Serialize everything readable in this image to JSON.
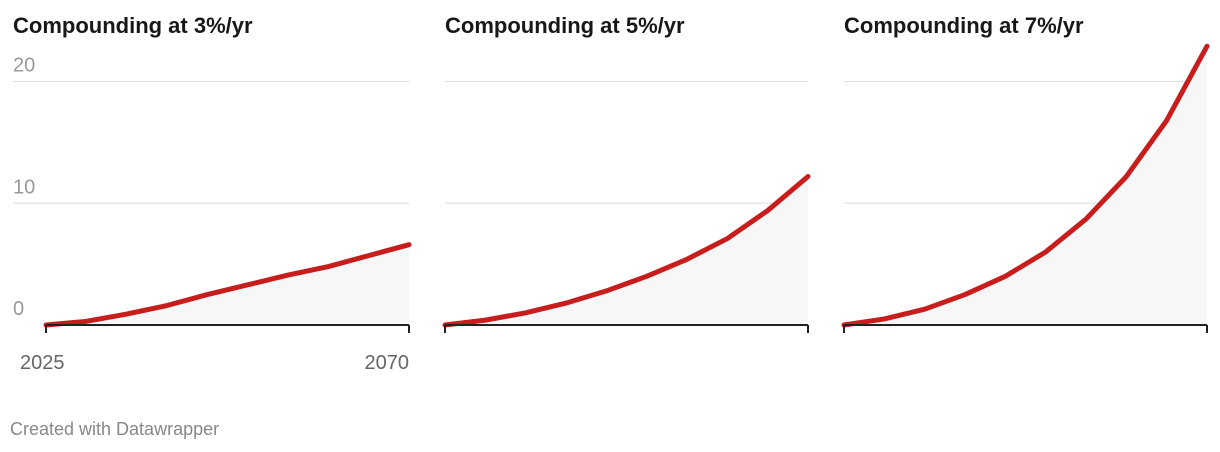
{
  "chart_data": [
    {
      "type": "line",
      "title": "Compounding at 3%/yr",
      "x": [
        2025,
        2030,
        2035,
        2040,
        2045,
        2050,
        2055,
        2060,
        2065,
        2070
      ],
      "series": [
        {
          "color": "#c71e1d",
          "values": [
            0,
            0.3,
            0.9,
            1.6,
            2.5,
            3.3,
            4.1,
            4.8,
            5.7,
            6.6
          ]
        }
      ],
      "xlim": [
        2025,
        2070
      ],
      "xticks": [
        2025,
        2070
      ],
      "ylim": [
        0,
        23
      ],
      "yticks": [
        0,
        10,
        20
      ],
      "grid": true,
      "tick_labels": true
    },
    {
      "type": "line",
      "title": "Compounding at 5%/yr",
      "x": [
        2025,
        2030,
        2035,
        2040,
        2045,
        2050,
        2055,
        2060,
        2065,
        2070
      ],
      "series": [
        {
          "color": "#c71e1d",
          "values": [
            0,
            0.4,
            1.0,
            1.8,
            2.8,
            4.0,
            5.4,
            7.1,
            9.4,
            12.2
          ]
        }
      ],
      "xlim": [
        2025,
        2070
      ],
      "xticks": [
        2025,
        2070
      ],
      "ylim": [
        0,
        23
      ],
      "yticks": [
        0,
        10,
        20
      ],
      "grid": true,
      "tick_labels": false
    },
    {
      "type": "line",
      "title": "Compounding at 7%/yr",
      "x": [
        2025,
        2030,
        2035,
        2040,
        2045,
        2050,
        2055,
        2060,
        2065,
        2070
      ],
      "series": [
        {
          "color": "#c71e1d",
          "values": [
            0,
            0.5,
            1.3,
            2.5,
            4.0,
            6.0,
            8.7,
            12.2,
            16.8,
            22.9
          ]
        }
      ],
      "xlim": [
        2025,
        2070
      ],
      "xticks": [
        2025,
        2070
      ],
      "ylim": [
        0,
        23
      ],
      "yticks": [
        0,
        10,
        20
      ],
      "grid": true,
      "tick_labels": false
    }
  ],
  "footer": "Created with Datawrapper"
}
